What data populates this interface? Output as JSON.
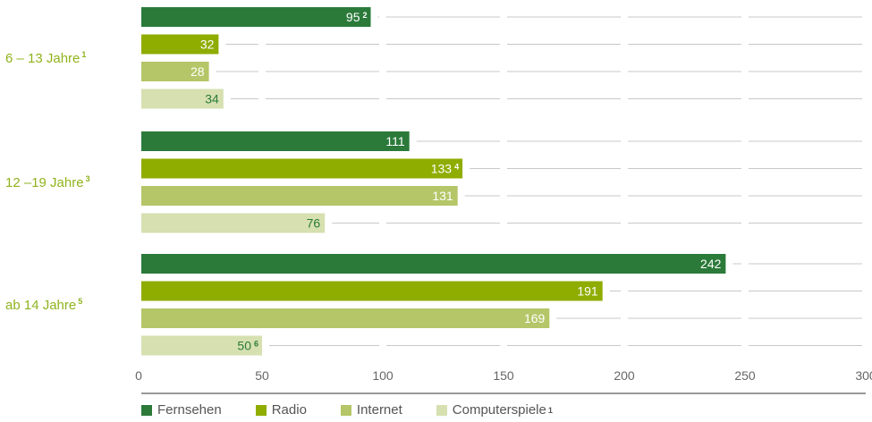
{
  "chart_data": {
    "type": "bar",
    "orientation": "horizontal",
    "xlim": [
      0,
      300
    ],
    "ticks": [
      0,
      50,
      100,
      150,
      200,
      250,
      300
    ],
    "grid": true,
    "legend_position": "bottom",
    "series": [
      {
        "name": "Fernsehen",
        "color": "#2b7a3a"
      },
      {
        "name": "Radio",
        "color": "#8fac00"
      },
      {
        "name": "Internet",
        "color": "#b4c667"
      },
      {
        "name": "Computerspiele",
        "sup": "1",
        "color": "#d6e0b0"
      }
    ],
    "groups": [
      {
        "label": "6 – 13 Jahre",
        "sup": "1",
        "bars": [
          {
            "series": "Fernsehen",
            "value": 95,
            "note": "2"
          },
          {
            "series": "Radio",
            "value": 32,
            "note": ""
          },
          {
            "series": "Internet",
            "value": 28,
            "note": ""
          },
          {
            "series": "Computerspiele",
            "value": 34,
            "note": ""
          }
        ]
      },
      {
        "label": "12 –19 Jahre",
        "sup": "3",
        "bars": [
          {
            "series": "Fernsehen",
            "value": 111,
            "note": ""
          },
          {
            "series": "Radio",
            "value": 133,
            "note": "4"
          },
          {
            "series": "Internet",
            "value": 131,
            "note": ""
          },
          {
            "series": "Computerspiele",
            "value": 76,
            "note": ""
          }
        ]
      },
      {
        "label": "ab 14 Jahre",
        "sup": "5",
        "bars": [
          {
            "series": "Fernsehen",
            "value": 242,
            "note": ""
          },
          {
            "series": "Radio",
            "value": 191,
            "note": ""
          },
          {
            "series": "Internet",
            "value": 169,
            "note": ""
          },
          {
            "series": "Computerspiele",
            "value": 50,
            "note": "6"
          }
        ]
      }
    ]
  }
}
